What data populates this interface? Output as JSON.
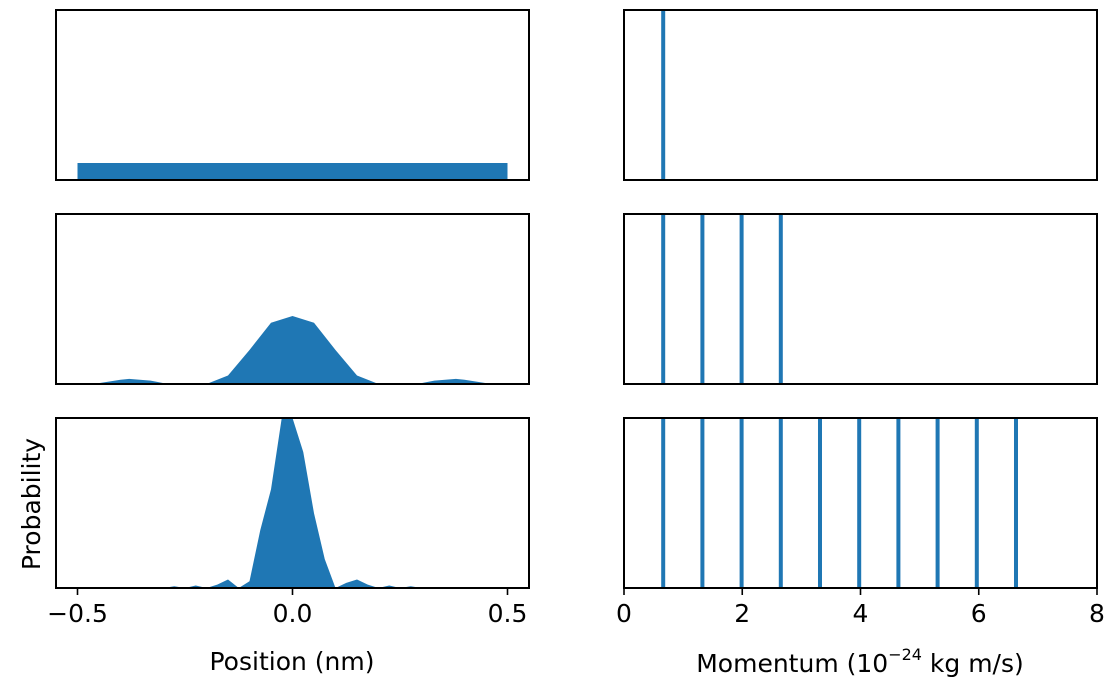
{
  "chart_data": {
    "type": "small-multiples",
    "color": "#1f77b4",
    "position_axis": {
      "xlabel": "Position (nm)",
      "ylabel": "Probability",
      "xlim": [
        -0.55,
        0.55
      ],
      "xticks": [
        -0.5,
        0.0,
        0.5
      ],
      "xtick_labels": [
        "−0.5",
        "0.0",
        "0.5"
      ]
    },
    "momentum_axis": {
      "xlabel_main": "Momentum (10",
      "xlabel_exp": "−24",
      "xlabel_tail": " kg m/s)",
      "xlim": [
        0,
        8
      ],
      "xticks": [
        0,
        2,
        4,
        6,
        8
      ],
      "xtick_labels": [
        "0",
        "2",
        "4",
        "6",
        "8"
      ]
    },
    "rows": [
      {
        "position": {
          "type": "area",
          "ylim": [
            0,
            1.0
          ],
          "x": [
            -0.5,
            0.5
          ],
          "y": [
            0.1,
            0.1
          ]
        },
        "momentum": {
          "type": "vlines",
          "x": [
            0.663
          ]
        }
      },
      {
        "position": {
          "type": "area",
          "ylim": [
            0,
            1.0
          ],
          "x": [
            -0.5,
            -0.45,
            -0.4,
            -0.38,
            -0.33,
            -0.3,
            -0.25,
            -0.2,
            -0.15,
            -0.1,
            -0.05,
            0.0,
            0.05,
            0.1,
            0.15,
            0.2,
            0.25,
            0.3,
            0.33,
            0.38,
            0.4,
            0.45,
            0.5
          ],
          "y": [
            0.0,
            0.005,
            0.025,
            0.03,
            0.02,
            0.005,
            0.0,
            0.0,
            0.05,
            0.2,
            0.36,
            0.4,
            0.36,
            0.2,
            0.05,
            0.0,
            0.0,
            0.005,
            0.02,
            0.03,
            0.025,
            0.005,
            0.0
          ]
        },
        "momentum": {
          "type": "vlines",
          "x": [
            0.663,
            1.326,
            1.989,
            2.652
          ]
        }
      },
      {
        "position": {
          "type": "area",
          "ylim": [
            0,
            1.0
          ],
          "x": [
            -0.5,
            -0.45,
            -0.4,
            -0.35,
            -0.3,
            -0.275,
            -0.25,
            -0.225,
            -0.2,
            -0.175,
            -0.15,
            -0.125,
            -0.1,
            -0.075,
            -0.05,
            -0.025,
            0.0,
            0.025,
            0.05,
            0.075,
            0.1,
            0.125,
            0.15,
            0.175,
            0.2,
            0.225,
            0.25,
            0.275,
            0.3,
            0.35,
            0.4,
            0.45,
            0.5
          ],
          "y": [
            0.0,
            0.005,
            0.0,
            0.005,
            0.0,
            0.01,
            0.0,
            0.015,
            0.0,
            0.02,
            0.05,
            0.0,
            0.04,
            0.34,
            0.58,
            1.0,
            1.0,
            0.8,
            0.44,
            0.17,
            0.0,
            0.03,
            0.05,
            0.02,
            0.0,
            0.015,
            0.0,
            0.01,
            0.0,
            0.005,
            0.0,
            0.005,
            0.0
          ]
        },
        "momentum": {
          "type": "vlines",
          "x": [
            0.663,
            1.326,
            1.989,
            2.652,
            3.315,
            3.978,
            4.641,
            5.304,
            5.967,
            6.63
          ]
        }
      }
    ]
  }
}
